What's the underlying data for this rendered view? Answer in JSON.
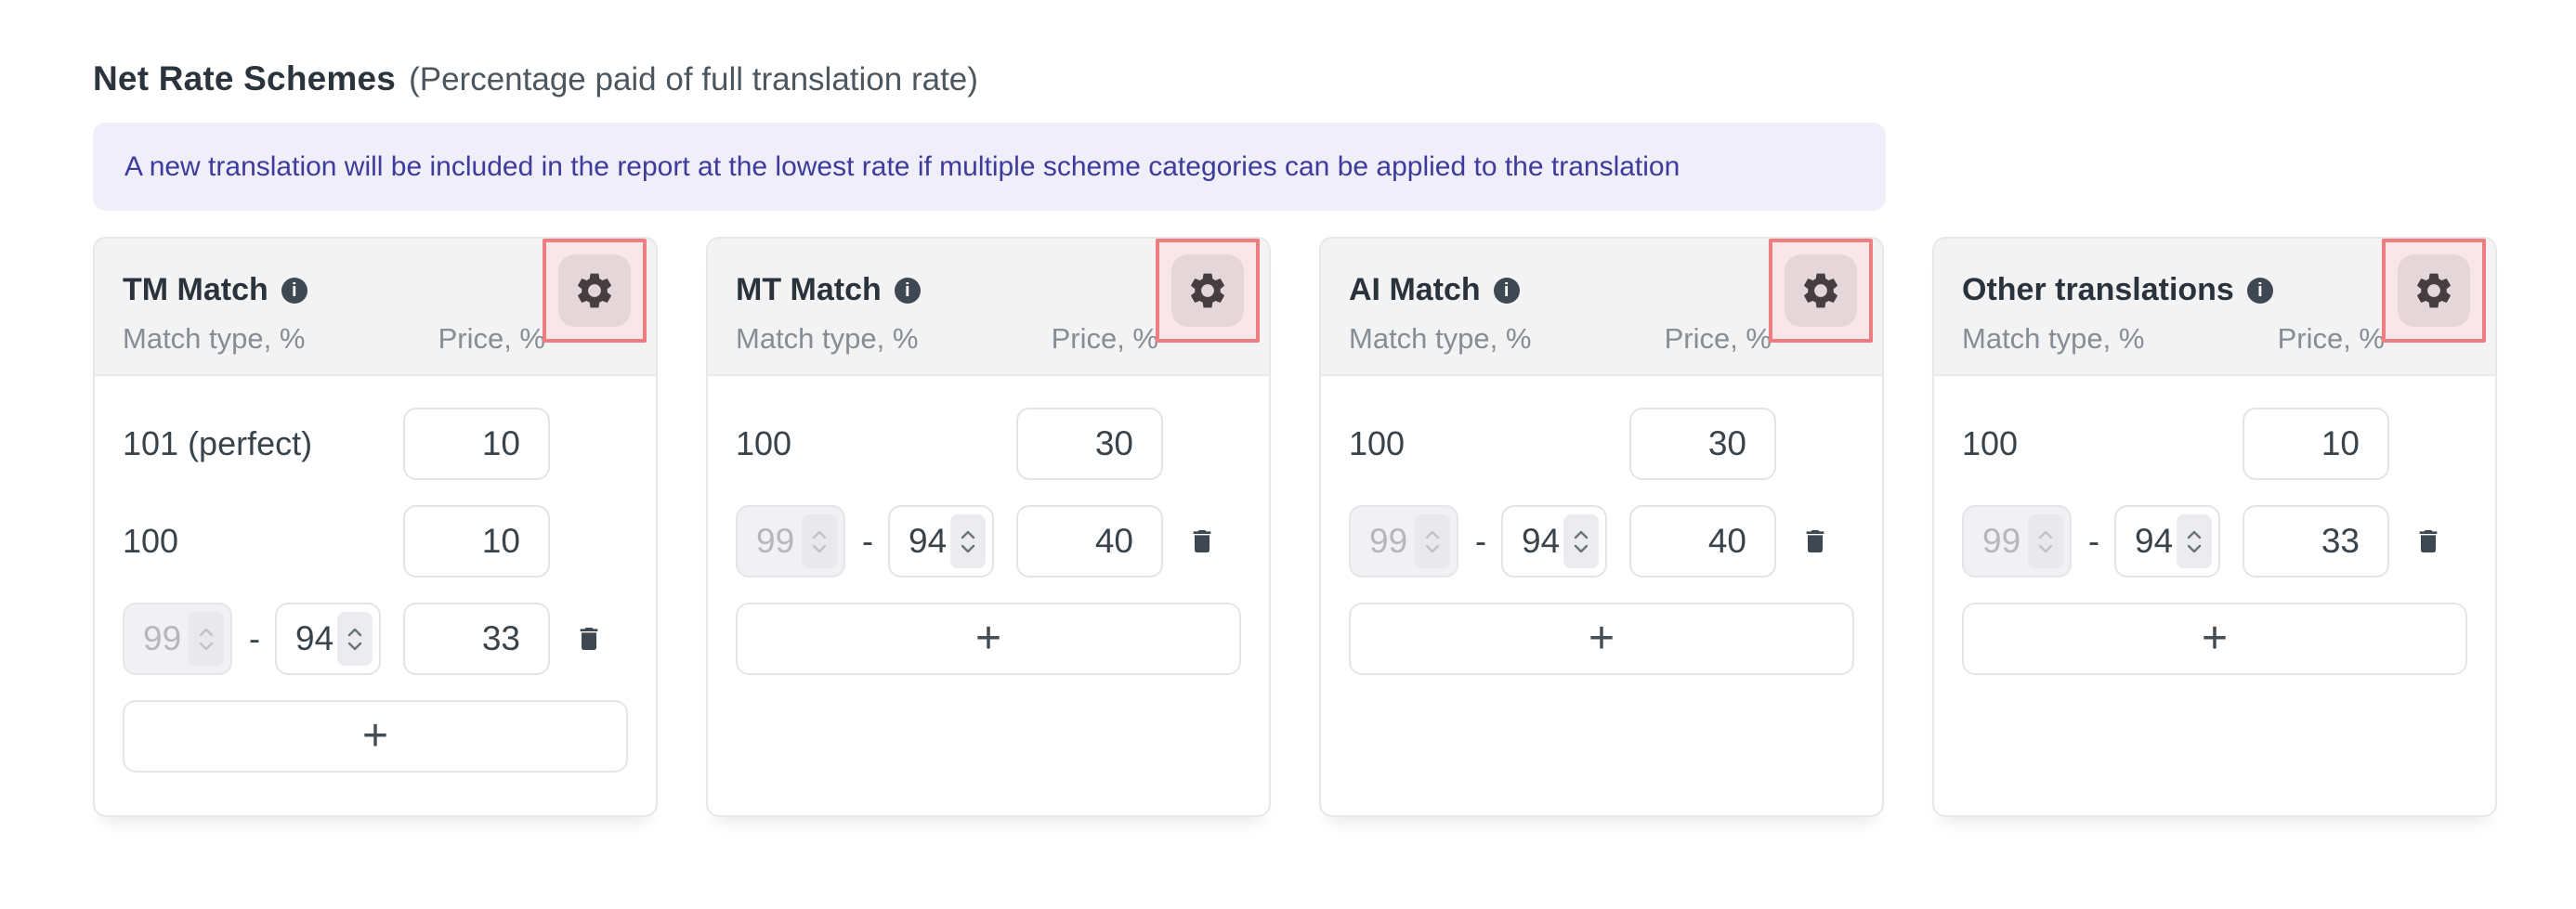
{
  "page": {
    "title": "Net Rate Schemes",
    "subtitle": "(Percentage paid of full translation rate)"
  },
  "banner": {
    "text": "A new translation will be included in the report at the lowest rate if multiple scheme categories can be applied to the translation"
  },
  "table_headers": {
    "match_type": "Match type, %",
    "price": "Price, %"
  },
  "actions": {
    "add": "+",
    "range_separator": "-"
  },
  "icons": {
    "info": "info-icon",
    "gear": "settings-gear-icon",
    "trash": "delete-trash-icon",
    "spinner": "number-stepper-chevrons"
  },
  "colors": {
    "annotation_border": "#ee7d82",
    "annotation_fill": "#f8e6e9",
    "banner_bg": "#efeef9",
    "banner_text": "#3d3b9b",
    "card_header_bg": "#f3f3f4",
    "dark_text": "#2b343c",
    "muted_text": "#868d94",
    "input_text": "#39434b",
    "icon_dark": "#3d4852"
  },
  "cards": [
    {
      "title": "TM Match",
      "rows": [
        {
          "type": "label",
          "label": "101 (perfect)",
          "price": "10",
          "deletable": false
        },
        {
          "type": "label",
          "label": "100",
          "price": "10",
          "deletable": false
        },
        {
          "type": "range",
          "from": "99",
          "to": "94",
          "price": "33",
          "deletable": true
        }
      ]
    },
    {
      "title": "MT Match",
      "rows": [
        {
          "type": "label",
          "label": "100",
          "price": "30",
          "deletable": false
        },
        {
          "type": "range",
          "from": "99",
          "to": "94",
          "price": "40",
          "deletable": true
        }
      ]
    },
    {
      "title": "AI Match",
      "rows": [
        {
          "type": "label",
          "label": "100",
          "price": "30",
          "deletable": false
        },
        {
          "type": "range",
          "from": "99",
          "to": "94",
          "price": "40",
          "deletable": true
        }
      ]
    },
    {
      "title": "Other translations",
      "rows": [
        {
          "type": "label",
          "label": "100",
          "price": "10",
          "deletable": false
        },
        {
          "type": "range",
          "from": "99",
          "to": "94",
          "price": "33",
          "deletable": true
        }
      ]
    }
  ]
}
